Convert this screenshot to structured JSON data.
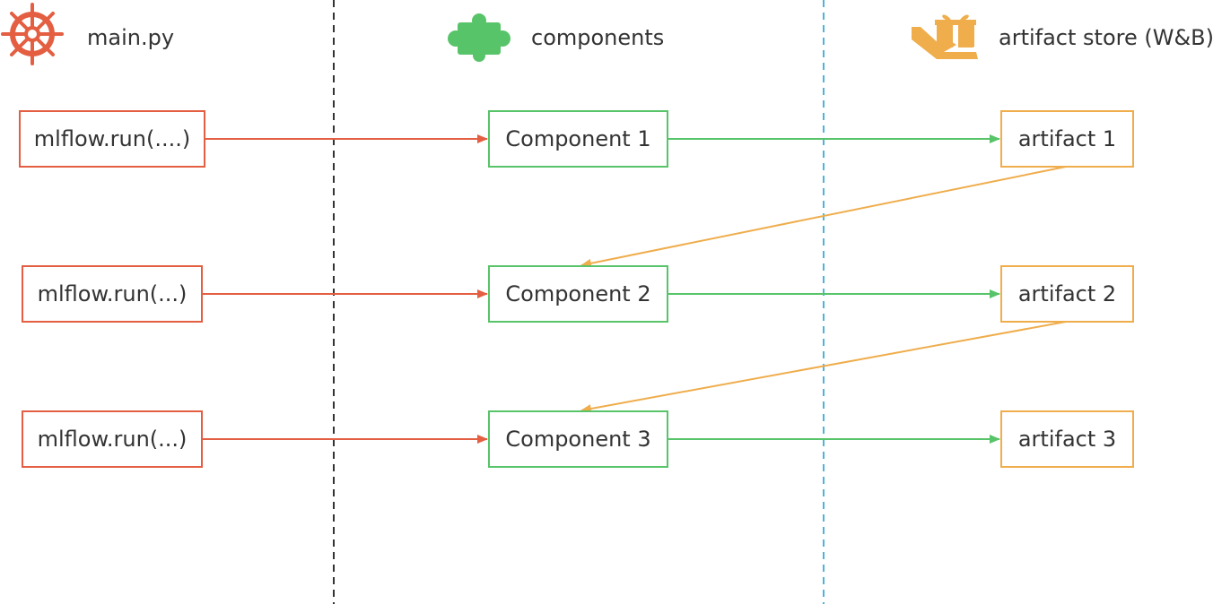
{
  "headers": {
    "main": "main.py",
    "components": "components",
    "store": "artifact store (W&B)"
  },
  "rows": [
    {
      "run": "mlflow.run(....)",
      "component": "Component 1",
      "artifact": "artifact 1"
    },
    {
      "run": "mlflow.run(...)",
      "component": "Component 2",
      "artifact": "artifact 2"
    },
    {
      "run": "mlflow.run(...)",
      "component": "Component 3",
      "artifact": "artifact 3"
    }
  ],
  "icons": {
    "main": "ship-wheel-icon",
    "components": "puzzle-piece-icon",
    "store": "hand-gift-icon"
  },
  "colors": {
    "main": "#e45e42",
    "components": "#58c469",
    "store": "#efad4c",
    "divider_left": "#333333",
    "divider_right": "#4fb3d9"
  }
}
